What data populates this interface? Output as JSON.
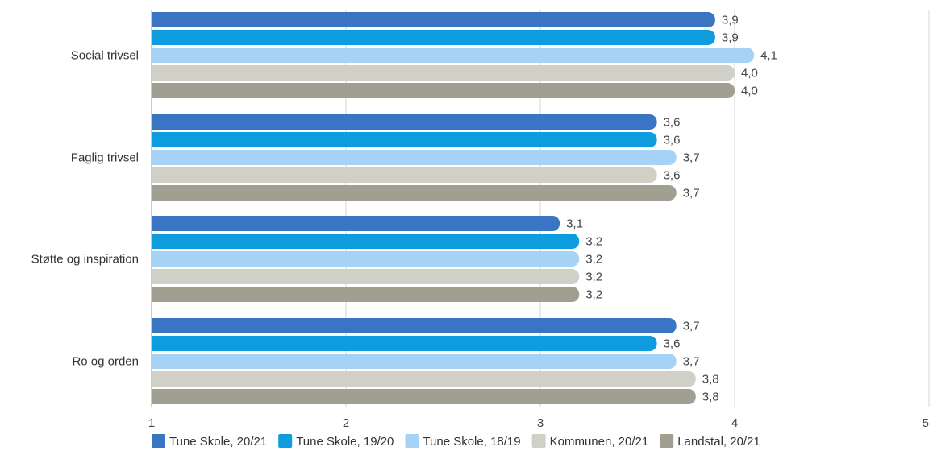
{
  "chart_data": {
    "type": "bar",
    "orientation": "horizontal",
    "categories": [
      "Social trivsel",
      "Faglig trivsel",
      "Støtte og inspiration",
      "Ro og orden"
    ],
    "series": [
      {
        "name": "Tune Skole, 20/21",
        "color": "#3a75c4",
        "values": [
          3.9,
          3.6,
          3.1,
          3.7
        ],
        "labels": [
          "3,9",
          "3,6",
          "3,1",
          "3,7"
        ]
      },
      {
        "name": "Tune Skole, 19/20",
        "color": "#0d9ddf",
        "values": [
          3.9,
          3.6,
          3.2,
          3.6
        ],
        "labels": [
          "3,9",
          "3,6",
          "3,2",
          "3,6"
        ]
      },
      {
        "name": "Tune Skole, 18/19",
        "color": "#a6d3f5",
        "values": [
          4.1,
          3.7,
          3.2,
          3.7
        ],
        "labels": [
          "4,1",
          "3,7",
          "3,2",
          "3,7"
        ]
      },
      {
        "name": "Kommunen, 20/21",
        "color": "#d1d0c6",
        "values": [
          4.0,
          3.6,
          3.2,
          3.8
        ],
        "labels": [
          "4,0",
          "3,6",
          "3,2",
          "3,8"
        ]
      },
      {
        "name": "Landstal, 20/21",
        "color": "#a09f91",
        "values": [
          4.0,
          3.7,
          3.2,
          3.8
        ],
        "labels": [
          "4,0",
          "3,7",
          "3,2",
          "3,8"
        ]
      }
    ],
    "xlim": [
      1,
      5
    ],
    "xticks": [
      "1",
      "2",
      "3",
      "4",
      "5"
    ],
    "grid": true,
    "legend": "bottom",
    "title": "",
    "xlabel": "",
    "ylabel": ""
  }
}
